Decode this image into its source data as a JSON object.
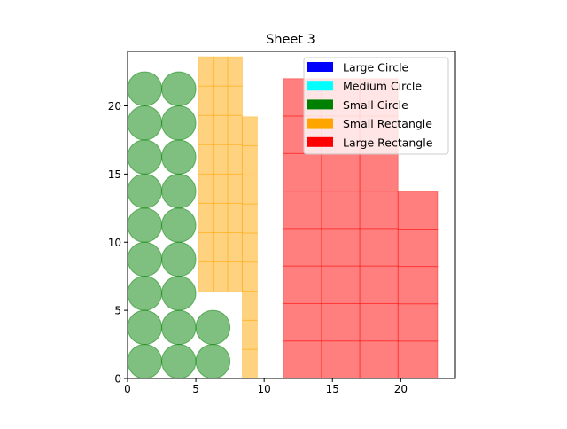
{
  "chart_data": {
    "type": "scatter",
    "title": "Sheet 3",
    "xlabel": "",
    "ylabel": "",
    "xlim": [
      0,
      24
    ],
    "ylim": [
      0,
      24
    ],
    "xticks": [
      0,
      5,
      10,
      15,
      20
    ],
    "yticks": [
      0,
      5,
      10,
      15,
      20
    ],
    "grid": false,
    "legend_position": "top-right",
    "legend": [
      {
        "label": "Large Circle",
        "color": "#0000ff"
      },
      {
        "label": "Medium Circle",
        "color": "#00ffff"
      },
      {
        "label": "Small Circle",
        "color": "#008000"
      },
      {
        "label": "Small Rectangle",
        "color": "#ffa500"
      },
      {
        "label": "Large Rectangle",
        "color": "#ff0000"
      }
    ],
    "small_circles": {
      "radius": 1.25,
      "color": "#008000",
      "centers": [
        [
          1.25,
          1.25
        ],
        [
          3.75,
          1.25
        ],
        [
          6.25,
          1.25
        ],
        [
          1.25,
          3.75
        ],
        [
          3.75,
          3.75
        ],
        [
          6.25,
          3.75
        ],
        [
          1.25,
          6.25
        ],
        [
          3.75,
          6.25
        ],
        [
          1.25,
          8.75
        ],
        [
          3.75,
          8.75
        ],
        [
          1.25,
          11.25
        ],
        [
          3.75,
          11.25
        ],
        [
          1.25,
          13.75
        ],
        [
          3.75,
          13.75
        ],
        [
          1.25,
          16.25
        ],
        [
          3.75,
          16.25
        ],
        [
          1.25,
          18.75
        ],
        [
          3.75,
          18.75
        ],
        [
          1.25,
          21.25
        ],
        [
          3.75,
          21.25
        ]
      ]
    },
    "small_rectangles": {
      "color": "#ffa500",
      "columns": [
        {
          "x0": 5.2,
          "x1": 8.4,
          "cols": 3,
          "y0": 6.4,
          "y1": 23.6,
          "rows": 8
        },
        {
          "x0": 8.4,
          "x1": 9.5,
          "cols": 1,
          "y0": 0,
          "y1": 19.2,
          "rows": 9
        }
      ]
    },
    "large_rectangles": {
      "color": "#ff0000",
      "columns": [
        {
          "x0": 11.4,
          "x1": 19.8,
          "cols": 3,
          "y0": 0,
          "y1": 22,
          "rows": 8
        },
        {
          "x0": 19.8,
          "x1": 22.7,
          "cols": 1,
          "y0": 0,
          "y1": 13.7,
          "rows": 5
        }
      ]
    }
  }
}
